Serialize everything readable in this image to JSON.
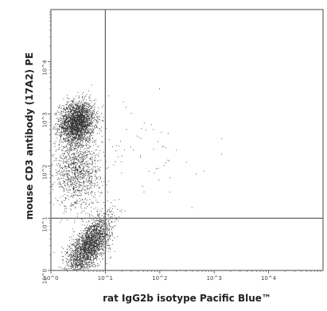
{
  "chart_data": {
    "type": "scatter",
    "xlabel": "rat IgG2b isotype Pacific Blue™",
    "ylabel": "mouse CD3 antibody (17A2) PE",
    "x_scale": "log",
    "y_scale": "log",
    "xlim": [
      1,
      100000
    ],
    "ylim": [
      1,
      100000
    ],
    "x_ticks": [
      "10^0",
      "10^1",
      "10^2",
      "10^3",
      "10^4"
    ],
    "y_ticks": [
      "10^0",
      "10^1",
      "10^2",
      "10^3",
      "10^4"
    ],
    "gates": {
      "x": 10,
      "y": 10
    },
    "grid": false,
    "colors": {
      "points": "#111111",
      "axes": "#666666",
      "gates": "#666666"
    },
    "populations": [
      {
        "quadrant": "upper-left",
        "center_x": 3,
        "center_y": 700,
        "density": "high"
      },
      {
        "quadrant": "middle-left",
        "center_x": 3,
        "center_y": 80,
        "density": "medium"
      },
      {
        "quadrant": "lower-left",
        "center_x": 5,
        "center_y": 3,
        "density": "high"
      },
      {
        "quadrant": "upper-right",
        "center_x": 50,
        "center_y": 200,
        "density": "very low"
      }
    ]
  }
}
